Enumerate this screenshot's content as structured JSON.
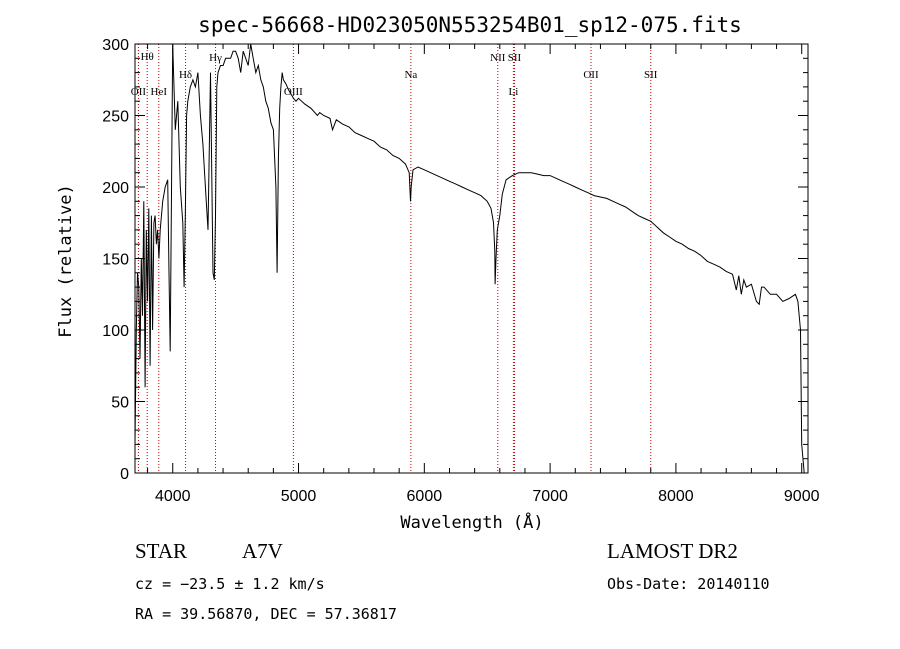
{
  "chart_data": {
    "type": "line",
    "title": "spec-56668-HD023050N553254B01_sp12-075.fits",
    "xlabel": "Wavelength (Å)",
    "ylabel": "Flux (relative)",
    "xlim": [
      3700,
      9050
    ],
    "ylim": [
      0,
      300
    ],
    "xticks": [
      4000,
      5000,
      6000,
      7000,
      8000,
      9000
    ],
    "yticks": [
      0,
      50,
      100,
      150,
      200,
      250,
      300
    ],
    "grid": false,
    "series": [
      {
        "x": [
          3700,
          3710,
          3720,
          3730,
          3740,
          3750,
          3760,
          3770,
          3780,
          3790,
          3800,
          3810,
          3820,
          3830,
          3840,
          3850,
          3860,
          3870,
          3880,
          3890,
          3900,
          3920,
          3940,
          3960,
          3970,
          3980,
          4000,
          4020,
          4040,
          4060,
          4080,
          4090,
          4100,
          4110,
          4120,
          4140,
          4160,
          4180,
          4200,
          4220,
          4240,
          4260,
          4280,
          4300,
          4320,
          4330,
          4340,
          4350,
          4360,
          4380,
          4400,
          4420,
          4440,
          4460,
          4480,
          4500,
          4520,
          4540,
          4560,
          4580,
          4600,
          4620,
          4640,
          4660,
          4680,
          4700,
          4720,
          4740,
          4760,
          4780,
          4800,
          4820,
          4830,
          4840,
          4850,
          4860,
          4870,
          4880,
          4900,
          4920,
          4940,
          4960,
          4980,
          5000,
          5050,
          5100,
          5150,
          5168,
          5200,
          5250,
          5270,
          5300,
          5350,
          5400,
          5450,
          5500,
          5550,
          5600,
          5650,
          5700,
          5750,
          5800,
          5850,
          5880,
          5890,
          5896,
          5910,
          5950,
          6000,
          6050,
          6100,
          6150,
          6200,
          6250,
          6300,
          6350,
          6400,
          6450,
          6500,
          6530,
          6550,
          6560,
          6563,
          6570,
          6580,
          6600,
          6620,
          6650,
          6700,
          6750,
          6800,
          6850,
          6900,
          6950,
          7000,
          7050,
          7100,
          7150,
          7200,
          7250,
          7300,
          7350,
          7400,
          7450,
          7500,
          7550,
          7600,
          7650,
          7700,
          7750,
          7800,
          7850,
          7900,
          7950,
          8000,
          8050,
          8100,
          8150,
          8200,
          8250,
          8300,
          8350,
          8400,
          8450,
          8480,
          8500,
          8520,
          8540,
          8560,
          8600,
          8640,
          8662,
          8680,
          8700,
          8750,
          8800,
          8850,
          8900,
          8950,
          8970,
          8990,
          9000,
          9020
        ],
        "y": [
          20,
          100,
          140,
          130,
          80,
          150,
          110,
          190,
          60,
          170,
          120,
          185,
          75,
          180,
          100,
          175,
          180,
          160,
          170,
          150,
          170,
          190,
          200,
          205,
          140,
          85,
          300,
          240,
          260,
          200,
          175,
          130,
          180,
          250,
          260,
          270,
          275,
          270,
          280,
          250,
          230,
          200,
          170,
          280,
          140,
          135,
          180,
          270,
          280,
          285,
          285,
          290,
          290,
          290,
          295,
          295,
          290,
          280,
          295,
          290,
          285,
          300,
          290,
          280,
          285,
          275,
          270,
          260,
          255,
          245,
          240,
          200,
          140,
          220,
          255,
          270,
          280,
          275,
          272,
          268,
          265,
          262,
          260,
          262,
          258,
          255,
          250,
          252,
          250,
          248,
          240,
          247,
          244,
          242,
          238,
          236,
          234,
          232,
          228,
          226,
          222,
          220,
          216,
          210,
          190,
          200,
          212,
          214,
          212,
          210,
          208,
          206,
          204,
          202,
          200,
          198,
          196,
          194,
          190,
          185,
          175,
          155,
          132,
          150,
          170,
          180,
          195,
          205,
          208,
          210,
          210,
          210,
          209,
          208,
          208,
          206,
          204,
          202,
          200,
          198,
          196,
          194,
          193,
          192,
          190,
          188,
          186,
          183,
          180,
          178,
          176,
          172,
          168,
          165,
          162,
          160,
          157,
          155,
          152,
          148,
          146,
          144,
          141,
          139,
          128,
          138,
          125,
          135,
          130,
          132,
          120,
          118,
          130,
          130,
          125,
          125,
          120,
          122,
          125,
          120,
          100,
          20,
          0
        ]
      }
    ],
    "line_markers": [
      {
        "label": "Hθ",
        "x": 3797
      },
      {
        "label": "OII",
        "x": 3727
      },
      {
        "label": "HeI",
        "x": 3889
      },
      {
        "label": "Hδ",
        "x": 4102
      },
      {
        "label": "Hγ",
        "x": 4340
      },
      {
        "label": "OIII",
        "x": 4959
      },
      {
        "label": "Na",
        "x": 5893
      },
      {
        "label": "NII",
        "x": 6584
      },
      {
        "label": "SII",
        "x": 6717
      },
      {
        "label": "Li",
        "x": 6708
      },
      {
        "label": "OII",
        "x": 7325
      },
      {
        "label": "SII",
        "x": 7800
      }
    ]
  },
  "info": {
    "object_class": "STAR",
    "subclass": "A7V",
    "survey": "LAMOST DR2",
    "cz": "cz = −23.5 ± 1.2 km/s",
    "obs_date": "Obs-Date: 20140110",
    "coords": "RA =  39.56870, DEC =  57.36817"
  }
}
